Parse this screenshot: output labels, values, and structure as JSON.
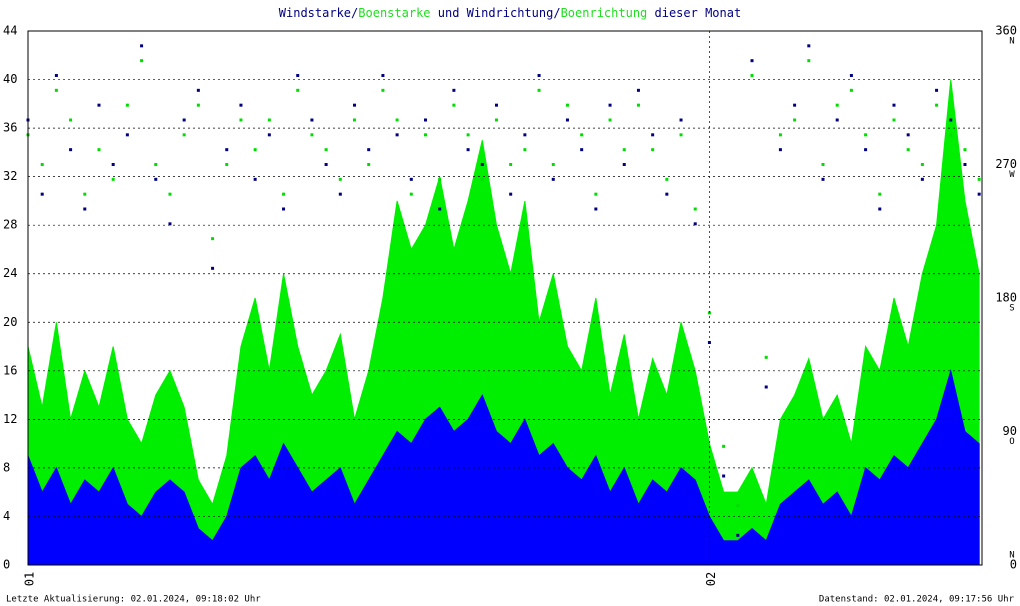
{
  "chart_data": {
    "type": "area",
    "title_parts": [
      {
        "text": "Windstarke",
        "color": "#000080"
      },
      {
        "text": "/",
        "color": "#000080"
      },
      {
        "text": "Boenstarke",
        "color": "#22dd22"
      },
      {
        "text": " und Windrichtung",
        "color": "#000080"
      },
      {
        "text": "/",
        "color": "#000080"
      },
      {
        "text": "Boenrichtung",
        "color": "#22dd22"
      },
      {
        "text": " dieser Monat",
        "color": "#000080"
      }
    ],
    "footer_left": "Letzte Aktualisierung: 02.01.2024, 09:18:02 Uhr",
    "footer_right": "Datenstand: 02.01.2024, 09:17:56 Uhr",
    "x": [
      0,
      0.5,
      1,
      1.5,
      2,
      2.5,
      3,
      3.5,
      4,
      4.5,
      5,
      5.5,
      6,
      6.5,
      7,
      7.5,
      8,
      8.5,
      9,
      9.5,
      10,
      10.5,
      11,
      11.5,
      12,
      12.5,
      13,
      13.5,
      14,
      14.5,
      15,
      15.5,
      16,
      16.5,
      17,
      17.5,
      18,
      18.5,
      19,
      19.5,
      20,
      20.5,
      21,
      21.5,
      22,
      22.5,
      23,
      23.5,
      24,
      24.5,
      25,
      25.5,
      26,
      26.5,
      27,
      27.5,
      28,
      28.5,
      29,
      29.5,
      30,
      30.5,
      31,
      31.5,
      32,
      32.5,
      33,
      33.5
    ],
    "xlim": [
      0,
      33.6
    ],
    "xticks": [
      {
        "value": 0,
        "label": "01"
      },
      {
        "value": 24,
        "label": "02"
      }
    ],
    "ylim": [
      0,
      44
    ],
    "yticks": [
      0,
      4,
      8,
      12,
      16,
      20,
      24,
      28,
      32,
      36,
      40,
      44
    ],
    "y2lim": [
      0,
      360
    ],
    "y2ticks": [
      0,
      90,
      180,
      270,
      360
    ],
    "compass": [
      {
        "value": 0,
        "label": "N"
      },
      {
        "value": 90,
        "label": "O"
      },
      {
        "value": 180,
        "label": "S"
      },
      {
        "value": 270,
        "label": "W"
      },
      {
        "value": 360,
        "label": "N"
      }
    ],
    "grid": true,
    "series": [
      {
        "name": "Boenstarke",
        "color": "#00ee00",
        "values": [
          18,
          13,
          20,
          12,
          16,
          13,
          18,
          12,
          10,
          14,
          16,
          13,
          7,
          5,
          9,
          18,
          22,
          16,
          24,
          18,
          14,
          16,
          19,
          12,
          16,
          22,
          30,
          26,
          28,
          32,
          26,
          30,
          35,
          28,
          24,
          30,
          20,
          24,
          18,
          16,
          22,
          14,
          19,
          12,
          17,
          14,
          20,
          16,
          10,
          6,
          6,
          8,
          5,
          12,
          14,
          17,
          12,
          14,
          10,
          18,
          16,
          22,
          18,
          24,
          28,
          40,
          30,
          24
        ]
      },
      {
        "name": "Windstarke",
        "color": "#0000ff",
        "values": [
          9,
          6,
          8,
          5,
          7,
          6,
          8,
          5,
          4,
          6,
          7,
          6,
          3,
          2,
          4,
          8,
          9,
          7,
          10,
          8,
          6,
          7,
          8,
          5,
          7,
          9,
          11,
          10,
          12,
          13,
          11,
          12,
          14,
          11,
          10,
          12,
          9,
          10,
          8,
          7,
          9,
          6,
          8,
          5,
          7,
          6,
          8,
          7,
          4,
          2,
          2,
          3,
          2,
          5,
          6,
          7,
          5,
          6,
          4,
          8,
          7,
          9,
          8,
          10,
          12,
          16,
          11,
          10
        ]
      },
      {
        "name": "Windrichtung",
        "color": "#000080",
        "axis": "y2",
        "values": [
          300,
          250,
          330,
          280,
          240,
          310,
          270,
          290,
          350,
          260,
          230,
          300,
          320,
          200,
          280,
          310,
          260,
          290,
          240,
          330,
          300,
          270,
          250,
          310,
          280,
          330,
          290,
          260,
          300,
          240,
          320,
          280,
          270,
          310,
          250,
          290,
          330,
          260,
          300,
          280,
          240,
          310,
          270,
          320,
          290,
          250,
          300,
          230,
          150,
          60,
          20,
          340,
          120,
          280,
          310,
          350,
          260,
          300,
          330,
          280,
          240,
          310,
          290,
          260,
          320,
          300,
          270,
          250
        ]
      },
      {
        "name": "Boenrichtung",
        "color": "#00dd00",
        "axis": "y2",
        "values": [
          290,
          270,
          320,
          300,
          250,
          280,
          260,
          310,
          340,
          270,
          250,
          290,
          310,
          220,
          270,
          300,
          280,
          300,
          250,
          320,
          290,
          280,
          260,
          300,
          270,
          320,
          300,
          250,
          290,
          260,
          310,
          290,
          260,
          300,
          270,
          280,
          320,
          270,
          310,
          290,
          250,
          300,
          280,
          310,
          280,
          260,
          290,
          240,
          170,
          80,
          40,
          330,
          140,
          290,
          300,
          340,
          270,
          310,
          320,
          290,
          250,
          300,
          280,
          270,
          310,
          290,
          280,
          260
        ]
      }
    ]
  }
}
